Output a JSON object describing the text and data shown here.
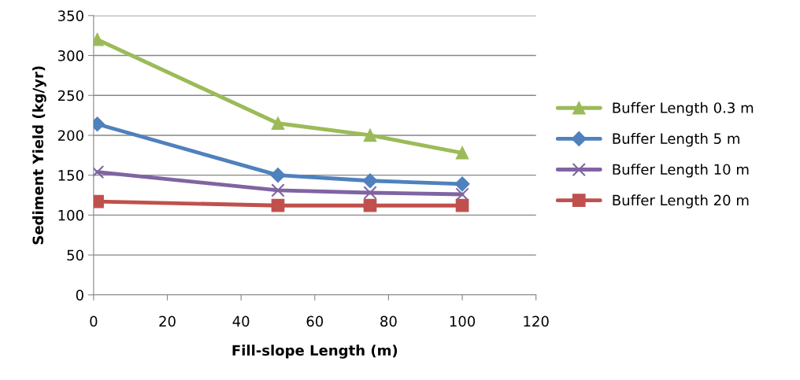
{
  "chart_data": {
    "type": "line",
    "xlabel": "Fill-slope Length (m)",
    "ylabel": "Sediment Yield (kg/yr)",
    "x": [
      1,
      50,
      75,
      100
    ],
    "series": [
      {
        "name": "Buffer Length 0.3 m",
        "color": "#9bbb59",
        "marker": "triangle",
        "values": [
          320,
          215,
          200,
          178
        ]
      },
      {
        "name": "Buffer Length 5 m",
        "color": "#4f81bd",
        "marker": "diamond",
        "values": [
          214,
          150,
          143,
          139
        ]
      },
      {
        "name": "Buffer Length 10 m",
        "color": "#8064a2",
        "marker": "cross",
        "values": [
          154,
          131,
          128,
          126
        ]
      },
      {
        "name": "Buffer Length 20 m",
        "color": "#c0504d",
        "marker": "square",
        "values": [
          117,
          112,
          112,
          112
        ]
      }
    ],
    "xlim": [
      0,
      120
    ],
    "xticks": [
      0,
      20,
      40,
      60,
      80,
      100,
      120
    ],
    "ylim": [
      0,
      350
    ],
    "yticks": [
      0,
      50,
      100,
      150,
      200,
      250,
      300,
      350
    ],
    "grid": "y",
    "legend": "right",
    "line_style": "solid"
  }
}
